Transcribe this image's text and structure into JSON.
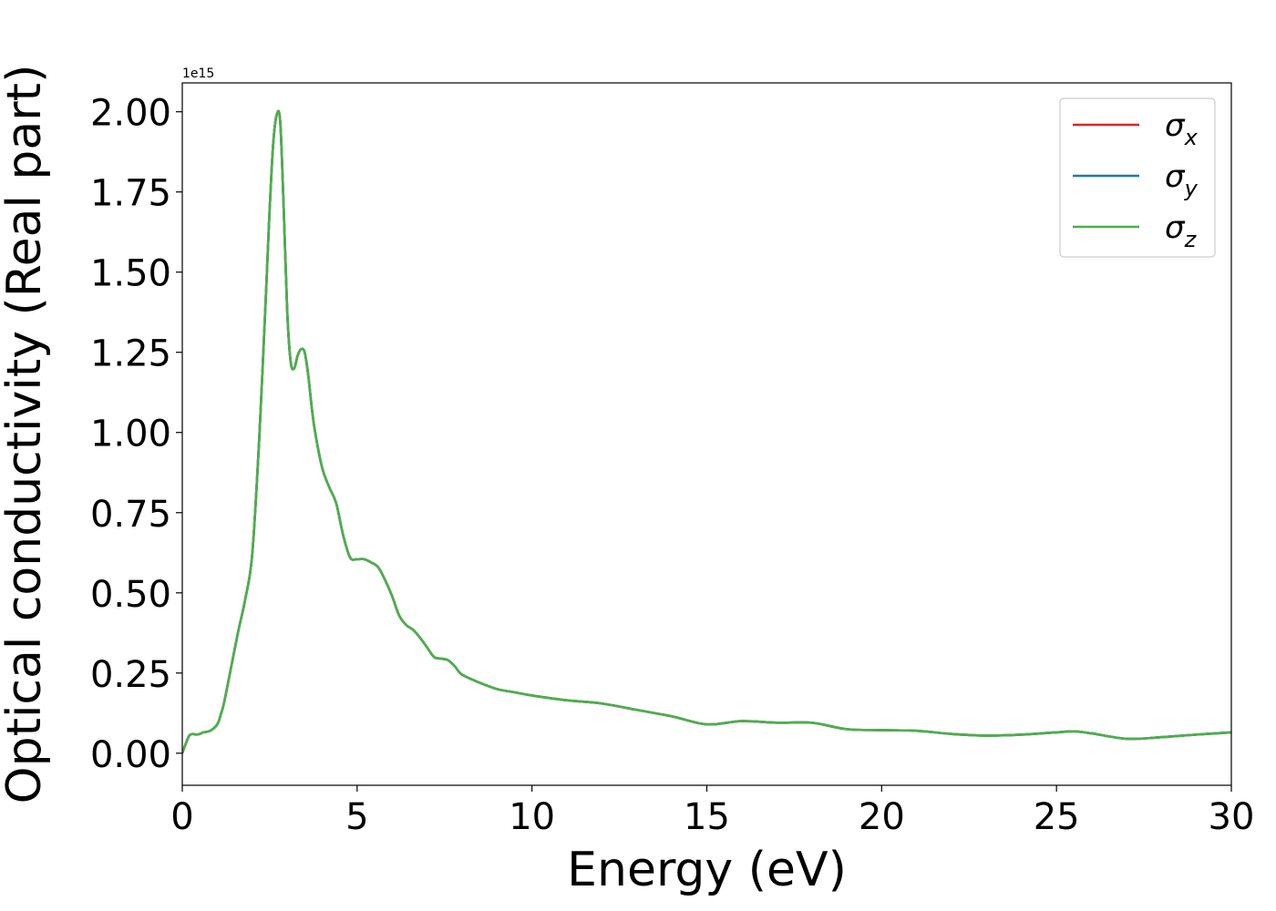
{
  "chart_data": {
    "type": "line",
    "xlabel": "Energy (eV)",
    "ylabel": "Optical conductivity (Real part)",
    "y_offset_label": "1e15",
    "xlim": [
      0,
      30
    ],
    "ylim": [
      -0.1,
      2.09
    ],
    "x_ticks": [
      0,
      5,
      10,
      15,
      20,
      25,
      30
    ],
    "x_tick_labels": [
      "0",
      "5",
      "10",
      "15",
      "20",
      "25",
      "30"
    ],
    "y_ticks": [
      0,
      0.25,
      0.5,
      0.75,
      1.0,
      1.25,
      1.5,
      1.75,
      2.0
    ],
    "y_tick_labels": [
      "0.00",
      "0.25",
      "0.50",
      "0.75",
      "1.00",
      "1.25",
      "1.50",
      "1.75",
      "2.00"
    ],
    "grid": false,
    "legend_position": "top-right",
    "series": [
      {
        "name": "σx",
        "symbol": "σ",
        "subscript": "x",
        "color": "#d62728",
        "x": [
          0,
          0.1,
          0.2,
          0.3,
          0.4,
          0.5,
          0.6,
          0.8,
          1.0,
          1.1,
          1.2,
          1.4,
          1.6,
          1.8,
          2.0,
          2.2,
          2.4,
          2.5,
          2.6,
          2.7,
          2.8,
          2.9,
          3.0,
          3.1,
          3.2,
          3.3,
          3.4,
          3.5,
          3.6,
          3.7,
          3.8,
          4.0,
          4.2,
          4.4,
          4.6,
          4.8,
          5.0,
          5.2,
          5.4,
          5.6,
          5.8,
          6.0,
          6.2,
          6.4,
          6.6,
          6.8,
          7.0,
          7.2,
          7.4,
          7.6,
          7.8,
          8.0,
          8.5,
          9.0,
          9.5,
          10.0,
          11.0,
          12.0,
          13.0,
          14.0,
          15.0,
          16.0,
          17.0,
          18.0,
          19.0,
          20.0,
          21.0,
          22.0,
          23.0,
          24.0,
          25.0,
          25.5,
          26.0,
          27.0,
          28.0,
          29.0,
          30.0
        ],
        "values": [
          0.0,
          0.03,
          0.055,
          0.06,
          0.058,
          0.06,
          0.065,
          0.07,
          0.09,
          0.12,
          0.16,
          0.27,
          0.38,
          0.48,
          0.62,
          0.98,
          1.45,
          1.7,
          1.9,
          1.99,
          1.97,
          1.7,
          1.38,
          1.22,
          1.2,
          1.24,
          1.26,
          1.25,
          1.18,
          1.08,
          1.0,
          0.89,
          0.83,
          0.78,
          0.68,
          0.61,
          0.605,
          0.605,
          0.595,
          0.58,
          0.54,
          0.49,
          0.43,
          0.4,
          0.385,
          0.36,
          0.33,
          0.3,
          0.295,
          0.29,
          0.27,
          0.245,
          0.22,
          0.2,
          0.19,
          0.18,
          0.165,
          0.155,
          0.135,
          0.115,
          0.09,
          0.1,
          0.095,
          0.095,
          0.075,
          0.072,
          0.07,
          0.06,
          0.055,
          0.058,
          0.065,
          0.068,
          0.062,
          0.045,
          0.05,
          0.058,
          0.065
        ]
      },
      {
        "name": "σy",
        "symbol": "σ",
        "subscript": "y",
        "color": "#1f77b4",
        "x": [
          0,
          0.1,
          0.2,
          0.3,
          0.4,
          0.5,
          0.6,
          0.8,
          1.0,
          1.1,
          1.2,
          1.4,
          1.6,
          1.8,
          2.0,
          2.2,
          2.4,
          2.5,
          2.6,
          2.7,
          2.8,
          2.9,
          3.0,
          3.1,
          3.2,
          3.3,
          3.4,
          3.5,
          3.6,
          3.7,
          3.8,
          4.0,
          4.2,
          4.4,
          4.6,
          4.8,
          5.0,
          5.2,
          5.4,
          5.6,
          5.8,
          6.0,
          6.2,
          6.4,
          6.6,
          6.8,
          7.0,
          7.2,
          7.4,
          7.6,
          7.8,
          8.0,
          8.5,
          9.0,
          9.5,
          10.0,
          11.0,
          12.0,
          13.0,
          14.0,
          15.0,
          16.0,
          17.0,
          18.0,
          19.0,
          20.0,
          21.0,
          22.0,
          23.0,
          24.0,
          25.0,
          25.5,
          26.0,
          27.0,
          28.0,
          29.0,
          30.0
        ],
        "values": [
          0.0,
          0.03,
          0.055,
          0.06,
          0.058,
          0.06,
          0.065,
          0.07,
          0.09,
          0.12,
          0.16,
          0.27,
          0.38,
          0.48,
          0.62,
          0.98,
          1.45,
          1.7,
          1.9,
          1.99,
          1.97,
          1.7,
          1.38,
          1.22,
          1.2,
          1.24,
          1.26,
          1.25,
          1.18,
          1.08,
          1.0,
          0.89,
          0.83,
          0.78,
          0.68,
          0.61,
          0.605,
          0.605,
          0.595,
          0.58,
          0.54,
          0.49,
          0.43,
          0.4,
          0.385,
          0.36,
          0.33,
          0.3,
          0.295,
          0.29,
          0.27,
          0.245,
          0.22,
          0.2,
          0.19,
          0.18,
          0.165,
          0.155,
          0.135,
          0.115,
          0.09,
          0.1,
          0.095,
          0.095,
          0.075,
          0.072,
          0.07,
          0.06,
          0.055,
          0.058,
          0.065,
          0.068,
          0.062,
          0.045,
          0.05,
          0.058,
          0.065
        ]
      },
      {
        "name": "σz",
        "symbol": "σ",
        "subscript": "z",
        "color": "#4daf4a",
        "x": [
          0,
          0.1,
          0.2,
          0.3,
          0.4,
          0.5,
          0.6,
          0.8,
          1.0,
          1.1,
          1.2,
          1.4,
          1.6,
          1.8,
          2.0,
          2.2,
          2.4,
          2.5,
          2.6,
          2.7,
          2.8,
          2.9,
          3.0,
          3.1,
          3.2,
          3.3,
          3.4,
          3.5,
          3.6,
          3.7,
          3.8,
          4.0,
          4.2,
          4.4,
          4.6,
          4.8,
          5.0,
          5.2,
          5.4,
          5.6,
          5.8,
          6.0,
          6.2,
          6.4,
          6.6,
          6.8,
          7.0,
          7.2,
          7.4,
          7.6,
          7.8,
          8.0,
          8.5,
          9.0,
          9.5,
          10.0,
          11.0,
          12.0,
          13.0,
          14.0,
          15.0,
          16.0,
          17.0,
          18.0,
          19.0,
          20.0,
          21.0,
          22.0,
          23.0,
          24.0,
          25.0,
          25.5,
          26.0,
          27.0,
          28.0,
          29.0,
          30.0
        ],
        "values": [
          0.0,
          0.03,
          0.055,
          0.06,
          0.058,
          0.06,
          0.065,
          0.07,
          0.09,
          0.12,
          0.16,
          0.27,
          0.38,
          0.48,
          0.62,
          0.98,
          1.45,
          1.7,
          1.9,
          1.99,
          1.97,
          1.7,
          1.38,
          1.22,
          1.2,
          1.24,
          1.26,
          1.25,
          1.18,
          1.08,
          1.0,
          0.89,
          0.83,
          0.78,
          0.68,
          0.61,
          0.605,
          0.605,
          0.595,
          0.58,
          0.54,
          0.49,
          0.43,
          0.4,
          0.385,
          0.36,
          0.33,
          0.3,
          0.295,
          0.29,
          0.27,
          0.245,
          0.22,
          0.2,
          0.19,
          0.18,
          0.165,
          0.155,
          0.135,
          0.115,
          0.09,
          0.1,
          0.095,
          0.095,
          0.075,
          0.072,
          0.07,
          0.06,
          0.055,
          0.058,
          0.065,
          0.068,
          0.062,
          0.045,
          0.05,
          0.058,
          0.065
        ]
      }
    ]
  }
}
